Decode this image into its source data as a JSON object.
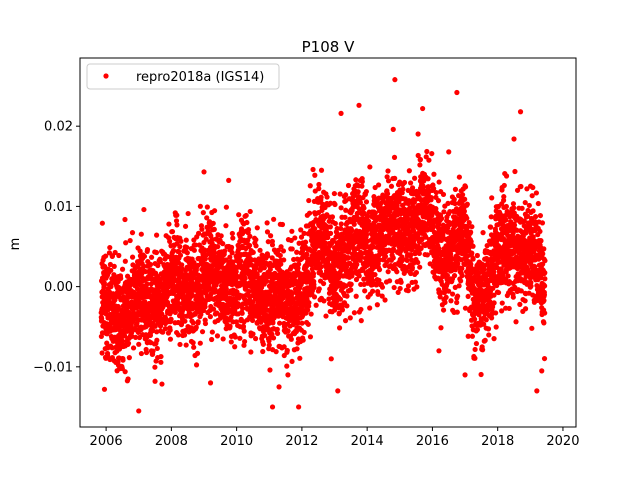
{
  "chart_data": {
    "type": "scatter",
    "title": "P108 V",
    "xlabel": "",
    "ylabel": "m",
    "xlim": [
      2005.2,
      2020.4
    ],
    "ylim": [
      -0.0175,
      0.0285
    ],
    "xticks": [
      2006,
      2008,
      2010,
      2012,
      2014,
      2016,
      2018,
      2020
    ],
    "xtick_labels": [
      "2006",
      "2008",
      "2010",
      "2012",
      "2014",
      "2016",
      "2018",
      "2020"
    ],
    "yticks": [
      -0.01,
      0.0,
      0.01,
      0.02
    ],
    "ytick_labels": [
      "−0.01",
      "0.00",
      "0.01",
      "0.02"
    ],
    "grid": false,
    "legend": {
      "position": "top-left"
    },
    "series": [
      {
        "name": "repro2018a (IGS14)",
        "color": "#ff0000",
        "marker": "circle",
        "x_start": 2005.85,
        "x_end": 2019.45,
        "trend_knots": [
          [
            2005.85,
            -0.003
          ],
          [
            2007.0,
            -0.0025
          ],
          [
            2008.0,
            -0.0005
          ],
          [
            2009.0,
            0.001
          ],
          [
            2010.0,
            0.0005
          ],
          [
            2011.0,
            0.0
          ],
          [
            2011.5,
            -0.003
          ],
          [
            2012.0,
            0.001
          ],
          [
            2012.5,
            0.005
          ],
          [
            2013.0,
            0.004
          ],
          [
            2014.0,
            0.006
          ],
          [
            2015.0,
            0.007
          ],
          [
            2015.7,
            0.009
          ],
          [
            2016.2,
            0.005
          ],
          [
            2017.0,
            0.005
          ],
          [
            2017.3,
            -0.001
          ],
          [
            2018.0,
            0.003
          ],
          [
            2018.5,
            0.006
          ],
          [
            2019.0,
            0.004
          ],
          [
            2019.45,
            0.0
          ]
        ],
        "noise_sd": 0.0042,
        "points": [
          [
            2014.85,
            0.0258
          ],
          [
            2016.75,
            0.0242
          ],
          [
            2013.75,
            0.0226
          ],
          [
            2015.7,
            0.0222
          ],
          [
            2018.7,
            0.0218
          ],
          [
            2013.2,
            0.0216
          ],
          [
            2014.8,
            0.0196
          ],
          [
            2018.5,
            0.0184
          ],
          [
            2016.5,
            0.0168
          ],
          [
            2009.0,
            0.0143
          ],
          [
            2007.0,
            -0.0155
          ],
          [
            2011.1,
            -0.015
          ],
          [
            2011.9,
            -0.015
          ],
          [
            2013.1,
            -0.013
          ],
          [
            2019.2,
            -0.013
          ],
          [
            2005.95,
            -0.0128
          ],
          [
            2007.5,
            -0.0118
          ],
          [
            2009.2,
            -0.012
          ],
          [
            2011.3,
            -0.0125
          ],
          [
            2012.9,
            -0.009
          ],
          [
            2016.2,
            -0.008
          ],
          [
            2017.0,
            -0.011
          ],
          [
            2019.35,
            -0.0105
          ]
        ]
      }
    ]
  }
}
